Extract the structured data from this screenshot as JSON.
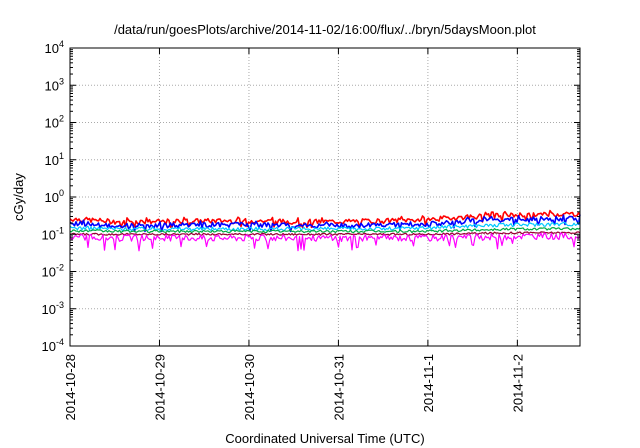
{
  "chart_data": {
    "type": "line",
    "title": "/data/run/goesPlots/archive/2014-11-02/16:00/flux/../bryn/5daysMoon.plot",
    "xlabel": "Coordinated Universal Time (UTC)",
    "ylabel": "cGy/day",
    "yscale": "log",
    "ylim": [
      0.0001,
      10000
    ],
    "xlim": [
      0,
      5.7
    ],
    "grid": true,
    "legend": "none",
    "x_ticks": [
      {
        "value": 0,
        "label": "2014-10-28"
      },
      {
        "value": 1,
        "label": "2014-10-29"
      },
      {
        "value": 2,
        "label": "2014-10-30"
      },
      {
        "value": 3,
        "label": "2014-10-31"
      },
      {
        "value": 4,
        "label": "2014-11-1"
      },
      {
        "value": 5,
        "label": "2014-11-2"
      }
    ],
    "y_ticks": [
      {
        "value": 0.0001,
        "base": "10",
        "exp": "-4"
      },
      {
        "value": 0.001,
        "base": "10",
        "exp": "-3"
      },
      {
        "value": 0.01,
        "base": "10",
        "exp": "-2"
      },
      {
        "value": 0.1,
        "base": "10",
        "exp": "-1"
      },
      {
        "value": 1,
        "base": "10",
        "exp": "0"
      },
      {
        "value": 10,
        "base": "10",
        "exp": "1"
      },
      {
        "value": 100,
        "base": "10",
        "exp": "2"
      },
      {
        "value": 1000,
        "base": "10",
        "exp": "3"
      },
      {
        "value": 10000,
        "base": "10",
        "exp": "4"
      }
    ],
    "series": [
      {
        "name": "red",
        "color": "#ff0000",
        "x": [
          0,
          0.5,
          1,
          1.5,
          2,
          2.5,
          3,
          3.5,
          4,
          4.5,
          5,
          5.5,
          5.7
        ],
        "values": [
          0.26,
          0.22,
          0.22,
          0.23,
          0.23,
          0.22,
          0.22,
          0.23,
          0.25,
          0.3,
          0.33,
          0.35,
          0.36
        ]
      },
      {
        "name": "blue",
        "color": "#0000ff",
        "x": [
          0,
          0.5,
          1,
          1.5,
          2,
          2.5,
          3,
          3.5,
          4,
          4.5,
          5,
          5.5,
          5.7
        ],
        "values": [
          0.2,
          0.17,
          0.17,
          0.18,
          0.18,
          0.17,
          0.17,
          0.18,
          0.19,
          0.23,
          0.25,
          0.26,
          0.27
        ]
      },
      {
        "name": "cyan",
        "color": "#00c8ff",
        "x": [
          0,
          0.5,
          1,
          1.5,
          2,
          2.5,
          3,
          3.5,
          4,
          4.5,
          5,
          5.5,
          5.7
        ],
        "values": [
          0.15,
          0.14,
          0.14,
          0.14,
          0.14,
          0.14,
          0.14,
          0.14,
          0.15,
          0.17,
          0.18,
          0.19,
          0.19
        ]
      },
      {
        "name": "green",
        "color": "#00aa44",
        "x": [
          0,
          0.5,
          1,
          1.5,
          2,
          2.5,
          3,
          3.5,
          4,
          4.5,
          5,
          5.5,
          5.7
        ],
        "values": [
          0.125,
          0.12,
          0.12,
          0.12,
          0.12,
          0.12,
          0.12,
          0.12,
          0.12,
          0.13,
          0.14,
          0.14,
          0.14
        ]
      },
      {
        "name": "dark-red",
        "color": "#990033",
        "x": [
          0,
          0.5,
          1,
          1.5,
          2,
          2.5,
          3,
          3.5,
          4,
          4.5,
          5,
          5.5,
          5.7
        ],
        "values": [
          0.1,
          0.1,
          0.1,
          0.1,
          0.1,
          0.1,
          0.1,
          0.1,
          0.1,
          0.105,
          0.11,
          0.11,
          0.11
        ]
      },
      {
        "name": "magenta",
        "color": "#ff00ff",
        "x": [
          0,
          0.5,
          1,
          1.5,
          2,
          2.5,
          3,
          3.5,
          4,
          4.5,
          5,
          5.5,
          5.7
        ],
        "values": [
          0.085,
          0.08,
          0.08,
          0.08,
          0.08,
          0.08,
          0.08,
          0.08,
          0.08,
          0.085,
          0.09,
          0.09,
          0.09
        ]
      }
    ]
  }
}
